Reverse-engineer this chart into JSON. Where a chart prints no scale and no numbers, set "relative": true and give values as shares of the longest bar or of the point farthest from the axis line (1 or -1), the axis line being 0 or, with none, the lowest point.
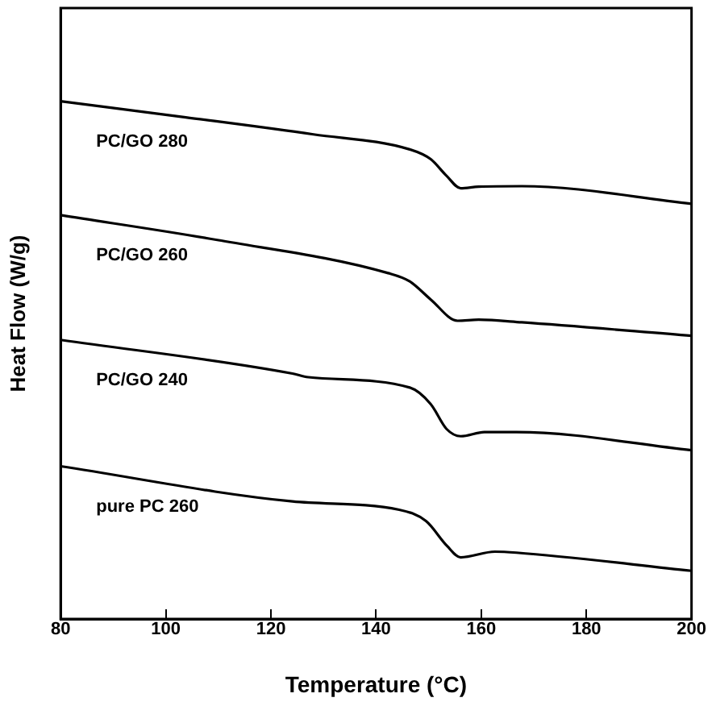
{
  "chart_data": {
    "type": "line",
    "xlabel": "Temperature (°C)",
    "ylabel": "Heat Flow (W/g)",
    "relative": true,
    "xlim": [
      80,
      200
    ],
    "xticks": [
      80,
      100,
      120,
      140,
      160,
      180,
      200
    ],
    "grid": false,
    "legend": false,
    "marker": "none",
    "line_style": "solid",
    "series": [
      {
        "name": "PC/GO 280",
        "color": "#000000",
        "x": [
          80,
          103.8,
          128.1,
          146.4,
          150.4,
          153.4,
          156.1,
          159.5,
          167.7,
          200
        ],
        "values": [
          1.0,
          0.969,
          0.936,
          0.907,
          0.888,
          0.856,
          0.832,
          0.835,
          0.836,
          0.802
        ]
      },
      {
        "name": "PC/GO 260",
        "color": "#000000",
        "x": [
          80,
          109.8,
          142.3,
          146.4,
          150.4,
          155.5,
          159.5,
          167.7,
          200
        ],
        "values": [
          0.78,
          0.732,
          0.668,
          0.652,
          0.617,
          0.576,
          0.578,
          0.573,
          0.547
        ]
      },
      {
        "name": "PC/GO 240",
        "color": "#000000",
        "x": [
          80,
          124.1,
          127.1,
          146.4,
          150.4,
          153.4,
          156.1,
          160.6,
          166.7,
          200
        ],
        "values": [
          0.539,
          0.474,
          0.467,
          0.447,
          0.415,
          0.367,
          0.353,
          0.361,
          0.361,
          0.326
        ]
      },
      {
        "name": "pure PC 260",
        "color": "#000000",
        "x": [
          80,
          124.1,
          144.4,
          149.5,
          153.5,
          156.1,
          162.6,
          166.7,
          200
        ],
        "values": [
          0.295,
          0.227,
          0.211,
          0.189,
          0.141,
          0.119,
          0.13,
          0.128,
          0.093
        ]
      }
    ]
  }
}
